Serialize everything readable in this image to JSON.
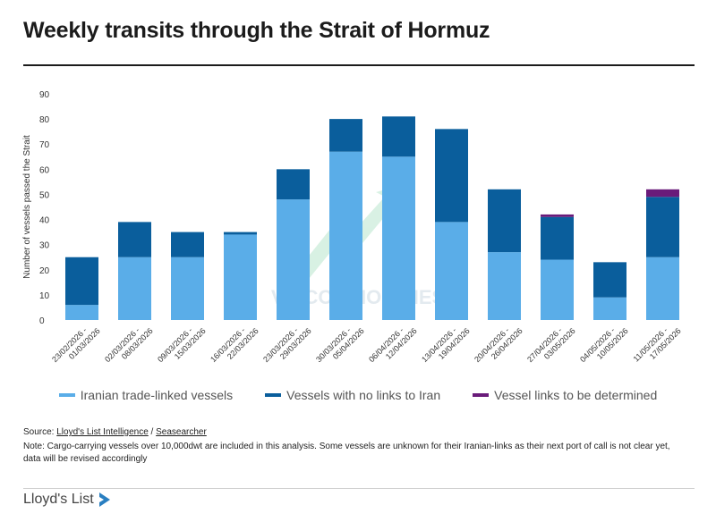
{
  "title": "Weekly transits through the Strait of Hormuz",
  "chart_data": {
    "type": "bar",
    "stacked": true,
    "ylabel": "Number of vessels passed the Strait",
    "ylim": [
      0,
      90
    ],
    "yticks": [
      0,
      10,
      20,
      30,
      40,
      50,
      60,
      70,
      80,
      90
    ],
    "grid": false,
    "legend_position": "bottom",
    "categories": [
      "23/02/2026 - 01/03/2026",
      "02/03/2026 - 08/03/2026",
      "09/03/2026 - 15/03/2026",
      "16/03/2026 - 22/03/2026",
      "23/03/2026 - 29/03/2026",
      "30/03/2026 - 05/04/2026",
      "06/04/2026 - 12/04/2026",
      "13/04/2026 - 19/04/2026",
      "20/04/2026 - 26/04/2026",
      "27/04/2026 - 03/05/2026",
      "04/05/2026 - 10/05/2026",
      "11/05/2026 - 17/05/2026"
    ],
    "series": [
      {
        "name": "Iranian trade-linked vessels",
        "color": "#5aade8",
        "values": [
          6,
          25,
          25,
          34,
          48,
          67,
          65,
          39,
          27,
          24,
          9,
          25
        ]
      },
      {
        "name": "Vessels with no links to Iran",
        "color": "#0a5e9c",
        "values": [
          19,
          14,
          10,
          1,
          12,
          13,
          16,
          37,
          25,
          17,
          14,
          24
        ]
      },
      {
        "name": "Vessel links to be determined",
        "color": "#6a1b7a",
        "values": [
          0,
          0,
          0,
          0,
          0,
          0,
          0,
          0,
          0,
          1,
          0,
          3
        ]
      }
    ]
  },
  "watermark": "VN COMMODITIES",
  "source": {
    "prefix": "Source: ",
    "link1": "Lloyd's List Intelligence",
    "separator": " / ",
    "link2": "Seasearcher"
  },
  "note": "Note: Cargo-carrying vessels over 10,000dwt are included in this analysis. Some vessels are unknown for their Iranian-links as their next port of call is not clear yet, data will be revised accordingly",
  "logo": {
    "text": "Lloyd's List",
    "icon": "lloyds-list-logo-icon",
    "color": "#2a7fc1"
  }
}
